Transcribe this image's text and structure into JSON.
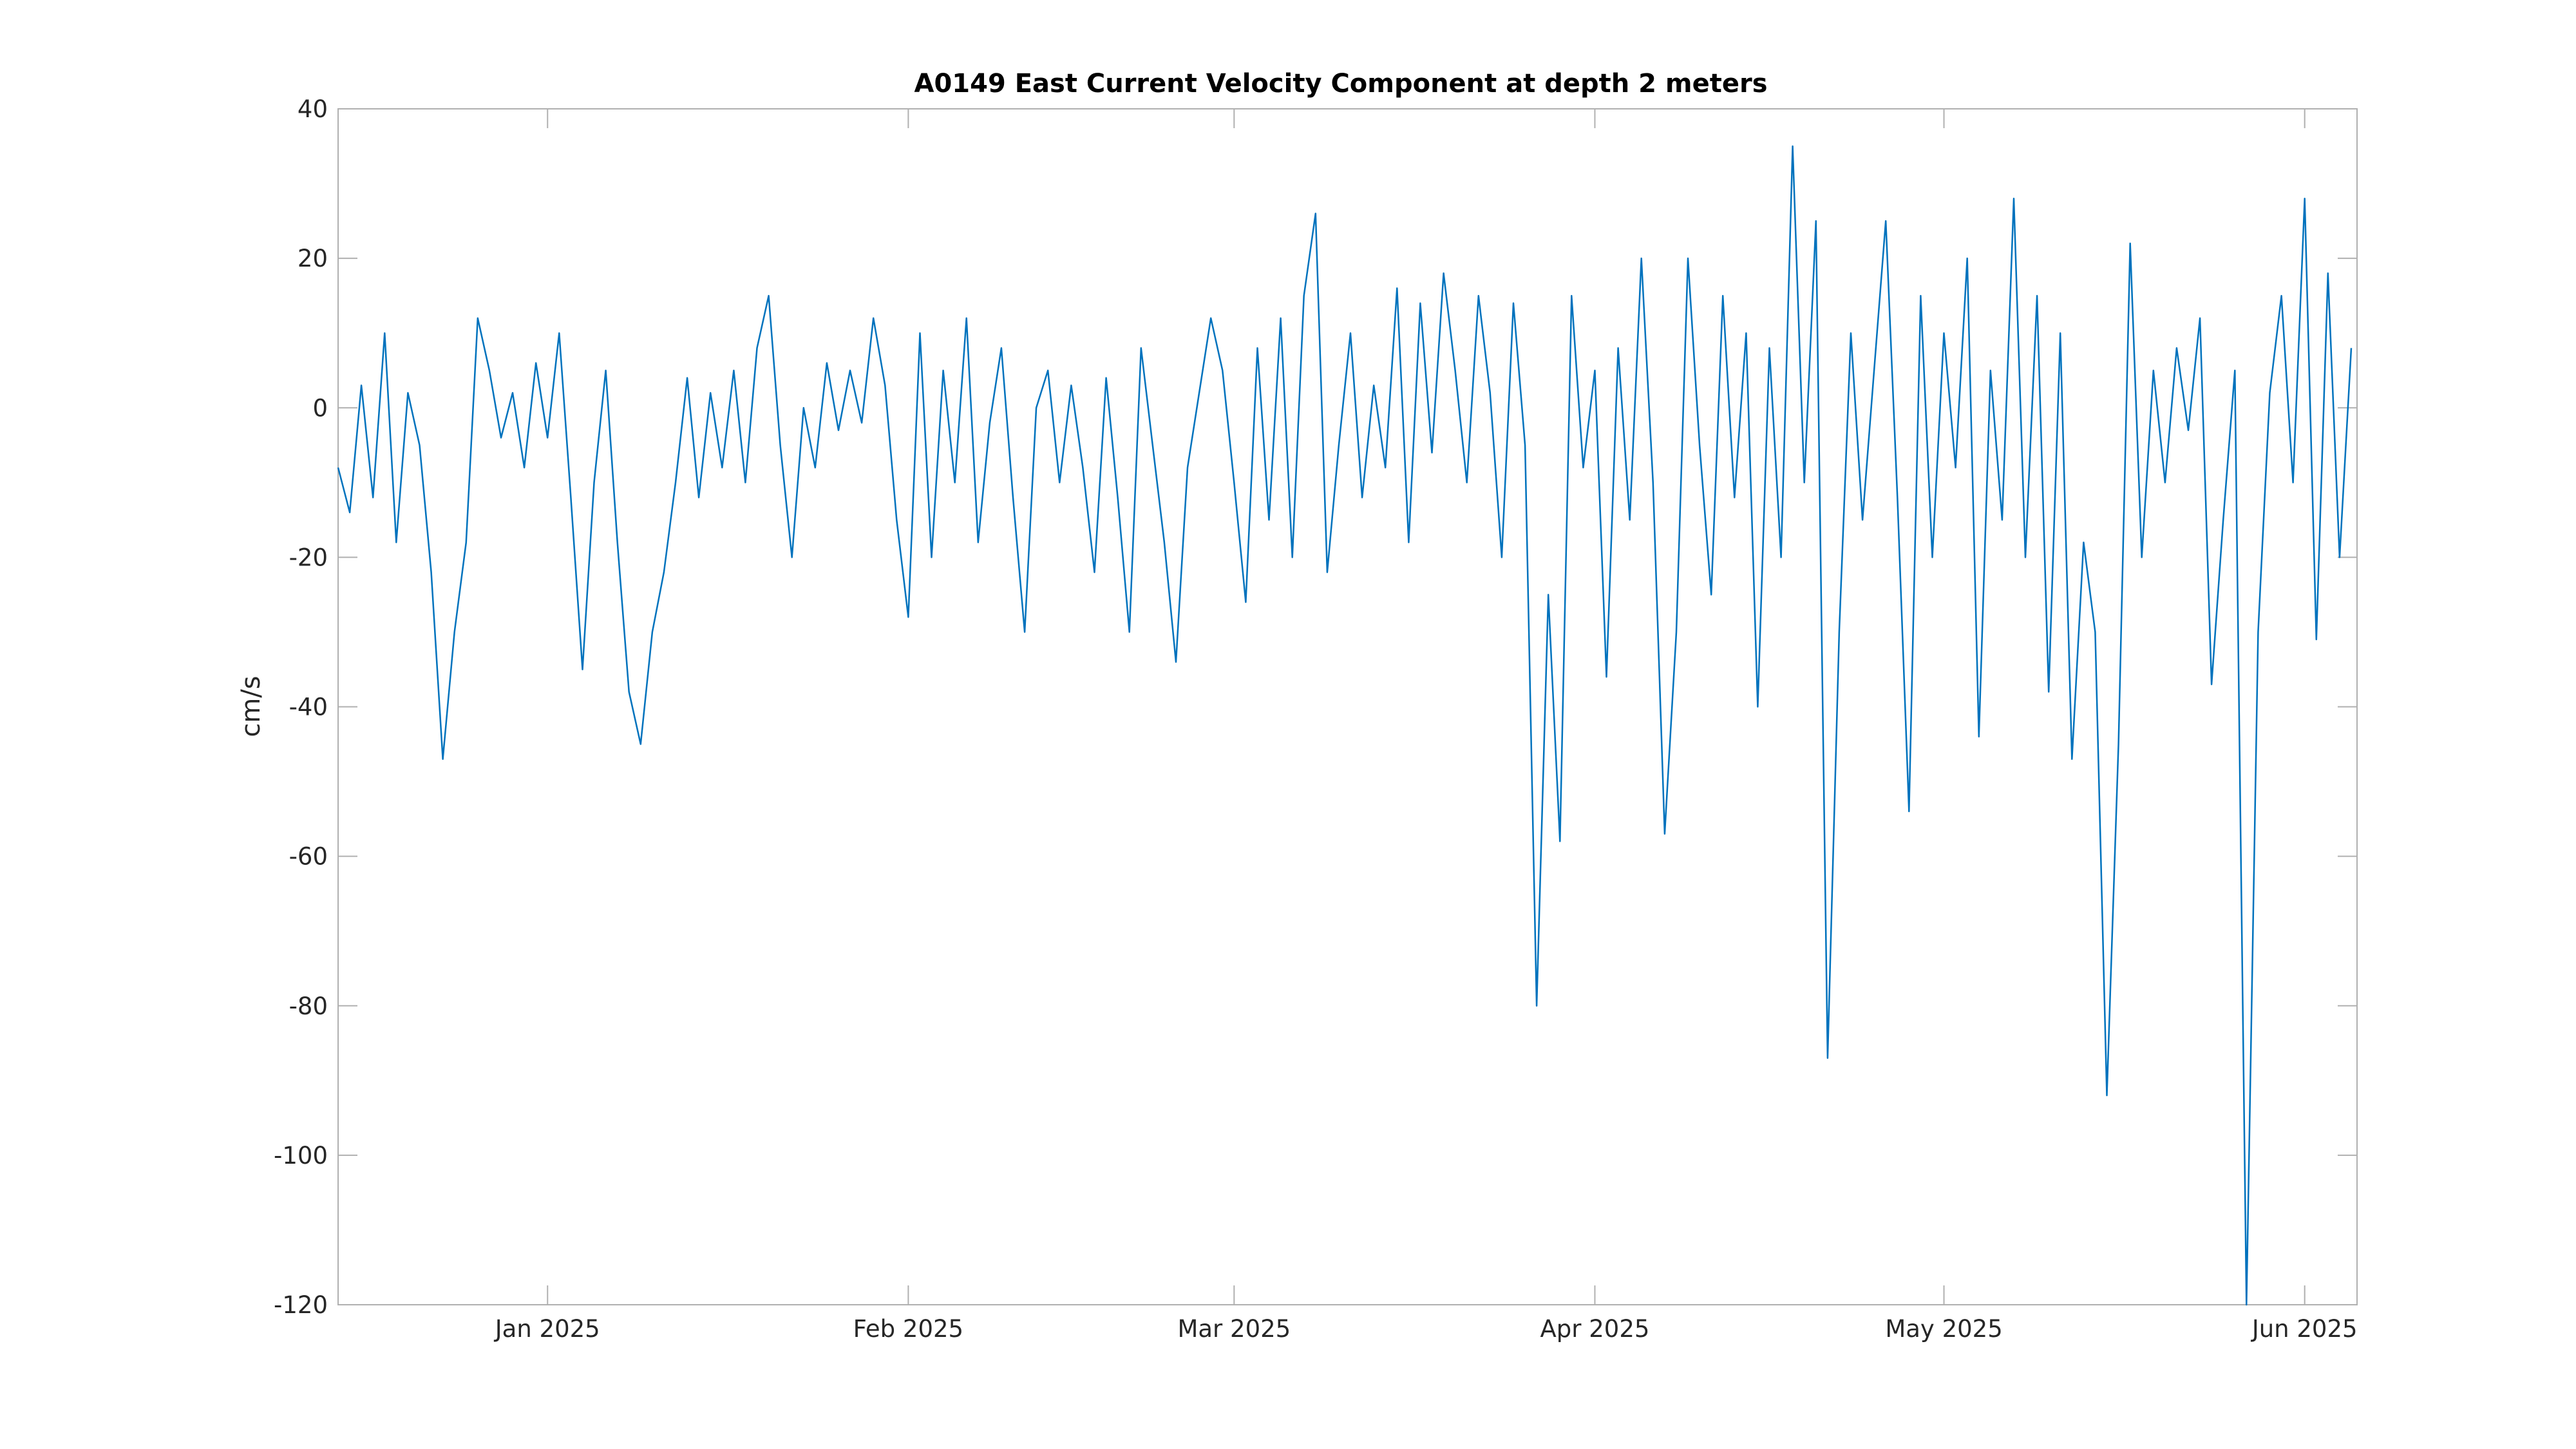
{
  "chart_data": {
    "type": "line",
    "title": "A0149 East Current Velocity Component at depth 2 meters",
    "xlabel": "",
    "ylabel": "cm/s",
    "x_start": "2024-12-14",
    "x_end": "2025-06-05",
    "ylim": [
      -120,
      40
    ],
    "yticks": [
      -120,
      -100,
      -80,
      -60,
      -40,
      -20,
      0,
      20,
      40
    ],
    "xticks": [
      {
        "date": "2025-01-01",
        "label": "Jan 2025"
      },
      {
        "date": "2025-02-01",
        "label": "Feb 2025"
      },
      {
        "date": "2025-03-01",
        "label": "Mar 2025"
      },
      {
        "date": "2025-04-01",
        "label": "Apr 2025"
      },
      {
        "date": "2025-05-01",
        "label": "May 2025"
      },
      {
        "date": "2025-06-01",
        "label": "Jun 2025"
      }
    ],
    "grid": false,
    "line_color": "#0072BD",
    "series": [
      {
        "name": "",
        "points": [
          [
            "2024-12-14",
            -8
          ],
          [
            "2024-12-15",
            -14
          ],
          [
            "2024-12-16",
            3
          ],
          [
            "2024-12-17",
            -12
          ],
          [
            "2024-12-18",
            10
          ],
          [
            "2024-12-19",
            -18
          ],
          [
            "2024-12-20",
            2
          ],
          [
            "2024-12-21",
            -5
          ],
          [
            "2024-12-22",
            -22
          ],
          [
            "2024-12-23",
            -47
          ],
          [
            "2024-12-24",
            -30
          ],
          [
            "2024-12-25",
            -18
          ],
          [
            "2024-12-26",
            12
          ],
          [
            "2024-12-27",
            5
          ],
          [
            "2024-12-28",
            -4
          ],
          [
            "2024-12-29",
            2
          ],
          [
            "2024-12-30",
            -8
          ],
          [
            "2024-12-31",
            6
          ],
          [
            "2025-01-01",
            -4
          ],
          [
            "2025-01-02",
            10
          ],
          [
            "2025-01-03",
            -12
          ],
          [
            "2025-01-04",
            -35
          ],
          [
            "2025-01-05",
            -10
          ],
          [
            "2025-01-06",
            5
          ],
          [
            "2025-01-07",
            -18
          ],
          [
            "2025-01-08",
            -38
          ],
          [
            "2025-01-09",
            -45
          ],
          [
            "2025-01-10",
            -30
          ],
          [
            "2025-01-11",
            -22
          ],
          [
            "2025-01-12",
            -10
          ],
          [
            "2025-01-13",
            4
          ],
          [
            "2025-01-14",
            -12
          ],
          [
            "2025-01-15",
            2
          ],
          [
            "2025-01-16",
            -8
          ],
          [
            "2025-01-17",
            5
          ],
          [
            "2025-01-18",
            -10
          ],
          [
            "2025-01-19",
            8
          ],
          [
            "2025-01-20",
            15
          ],
          [
            "2025-01-21",
            -5
          ],
          [
            "2025-01-22",
            -20
          ],
          [
            "2025-01-23",
            0
          ],
          [
            "2025-01-24",
            -8
          ],
          [
            "2025-01-25",
            6
          ],
          [
            "2025-01-26",
            -3
          ],
          [
            "2025-01-27",
            5
          ],
          [
            "2025-01-28",
            -2
          ],
          [
            "2025-01-29",
            12
          ],
          [
            "2025-01-30",
            3
          ],
          [
            "2025-01-31",
            -15
          ],
          [
            "2025-02-01",
            -28
          ],
          [
            "2025-02-02",
            10
          ],
          [
            "2025-02-03",
            -20
          ],
          [
            "2025-02-04",
            5
          ],
          [
            "2025-02-05",
            -10
          ],
          [
            "2025-02-06",
            12
          ],
          [
            "2025-02-07",
            -18
          ],
          [
            "2025-02-08",
            -2
          ],
          [
            "2025-02-09",
            8
          ],
          [
            "2025-02-10",
            -12
          ],
          [
            "2025-02-11",
            -30
          ],
          [
            "2025-02-12",
            0
          ],
          [
            "2025-02-13",
            5
          ],
          [
            "2025-02-14",
            -10
          ],
          [
            "2025-02-15",
            3
          ],
          [
            "2025-02-16",
            -8
          ],
          [
            "2025-02-17",
            -22
          ],
          [
            "2025-02-18",
            4
          ],
          [
            "2025-02-19",
            -12
          ],
          [
            "2025-02-20",
            -30
          ],
          [
            "2025-02-21",
            8
          ],
          [
            "2025-02-22",
            -5
          ],
          [
            "2025-02-23",
            -18
          ],
          [
            "2025-02-24",
            -34
          ],
          [
            "2025-02-25",
            -8
          ],
          [
            "2025-02-26",
            2
          ],
          [
            "2025-02-27",
            12
          ],
          [
            "2025-02-28",
            5
          ],
          [
            "2025-03-01",
            -10
          ],
          [
            "2025-03-02",
            -26
          ],
          [
            "2025-03-03",
            8
          ],
          [
            "2025-03-04",
            -15
          ],
          [
            "2025-03-05",
            12
          ],
          [
            "2025-03-06",
            -20
          ],
          [
            "2025-03-07",
            15
          ],
          [
            "2025-03-08",
            26
          ],
          [
            "2025-03-09",
            -22
          ],
          [
            "2025-03-10",
            -5
          ],
          [
            "2025-03-11",
            10
          ],
          [
            "2025-03-12",
            -12
          ],
          [
            "2025-03-13",
            3
          ],
          [
            "2025-03-14",
            -8
          ],
          [
            "2025-03-15",
            16
          ],
          [
            "2025-03-16",
            -18
          ],
          [
            "2025-03-17",
            14
          ],
          [
            "2025-03-18",
            -6
          ],
          [
            "2025-03-19",
            18
          ],
          [
            "2025-03-20",
            5
          ],
          [
            "2025-03-21",
            -10
          ],
          [
            "2025-03-22",
            15
          ],
          [
            "2025-03-23",
            2
          ],
          [
            "2025-03-24",
            -20
          ],
          [
            "2025-03-25",
            14
          ],
          [
            "2025-03-26",
            -5
          ],
          [
            "2025-03-27",
            -80
          ],
          [
            "2025-03-28",
            -25
          ],
          [
            "2025-03-29",
            -58
          ],
          [
            "2025-03-30",
            15
          ],
          [
            "2025-03-31",
            -8
          ],
          [
            "2025-04-01",
            5
          ],
          [
            "2025-04-02",
            -36
          ],
          [
            "2025-04-03",
            8
          ],
          [
            "2025-04-04",
            -15
          ],
          [
            "2025-04-05",
            20
          ],
          [
            "2025-04-06",
            -10
          ],
          [
            "2025-04-07",
            -57
          ],
          [
            "2025-04-08",
            -30
          ],
          [
            "2025-04-09",
            20
          ],
          [
            "2025-04-10",
            -5
          ],
          [
            "2025-04-11",
            -25
          ],
          [
            "2025-04-12",
            15
          ],
          [
            "2025-04-13",
            -12
          ],
          [
            "2025-04-14",
            10
          ],
          [
            "2025-04-15",
            -40
          ],
          [
            "2025-04-16",
            8
          ],
          [
            "2025-04-17",
            -20
          ],
          [
            "2025-04-18",
            35
          ],
          [
            "2025-04-19",
            -10
          ],
          [
            "2025-04-20",
            25
          ],
          [
            "2025-04-21",
            -87
          ],
          [
            "2025-04-22",
            -30
          ],
          [
            "2025-04-23",
            10
          ],
          [
            "2025-04-24",
            -15
          ],
          [
            "2025-04-25",
            5
          ],
          [
            "2025-04-26",
            25
          ],
          [
            "2025-04-27",
            -12
          ],
          [
            "2025-04-28",
            -54
          ],
          [
            "2025-04-29",
            15
          ],
          [
            "2025-04-30",
            -20
          ],
          [
            "2025-05-01",
            10
          ],
          [
            "2025-05-02",
            -8
          ],
          [
            "2025-05-03",
            20
          ],
          [
            "2025-05-04",
            -44
          ],
          [
            "2025-05-05",
            5
          ],
          [
            "2025-05-06",
            -15
          ],
          [
            "2025-05-07",
            28
          ],
          [
            "2025-05-08",
            -20
          ],
          [
            "2025-05-09",
            15
          ],
          [
            "2025-05-10",
            -38
          ],
          [
            "2025-05-11",
            10
          ],
          [
            "2025-05-12",
            -47
          ],
          [
            "2025-05-13",
            -18
          ],
          [
            "2025-05-14",
            -30
          ],
          [
            "2025-05-15",
            -92
          ],
          [
            "2025-05-16",
            -45
          ],
          [
            "2025-05-17",
            22
          ],
          [
            "2025-05-18",
            -20
          ],
          [
            "2025-05-19",
            5
          ],
          [
            "2025-05-20",
            -10
          ],
          [
            "2025-05-21",
            8
          ],
          [
            "2025-05-22",
            -3
          ],
          [
            "2025-05-23",
            12
          ],
          [
            "2025-05-24",
            -37
          ],
          [
            "2025-05-25",
            -15
          ],
          [
            "2025-05-26",
            5
          ],
          [
            "2025-05-27",
            -120
          ],
          [
            "2025-05-28",
            -30
          ],
          [
            "2025-05-29",
            2
          ],
          [
            "2025-05-30",
            15
          ],
          [
            "2025-05-31",
            -10
          ],
          [
            "2025-06-01",
            28
          ],
          [
            "2025-06-02",
            -31
          ],
          [
            "2025-06-03",
            18
          ],
          [
            "2025-06-04",
            -20
          ],
          [
            "2025-06-05",
            8
          ]
        ]
      }
    ]
  }
}
